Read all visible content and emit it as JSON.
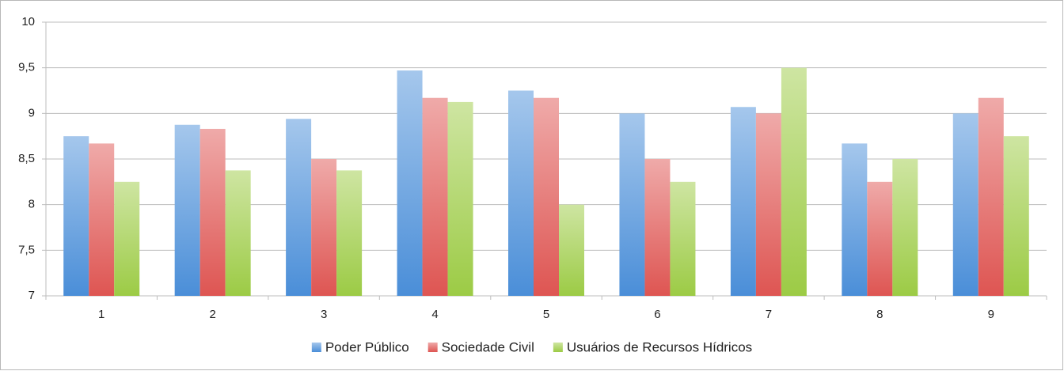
{
  "chart_data": {
    "type": "bar",
    "categories": [
      "1",
      "2",
      "3",
      "4",
      "5",
      "6",
      "7",
      "8",
      "9"
    ],
    "series": [
      {
        "name": "Poder Público",
        "color": "#4a8ed8",
        "values": [
          8.75,
          8.875,
          8.94,
          9.47,
          9.25,
          9.0,
          9.07,
          8.67,
          9.0
        ]
      },
      {
        "name": "Sociedade Civil",
        "color": "#de5552",
        "values": [
          8.67,
          8.83,
          8.5,
          9.17,
          9.17,
          8.5,
          9.0,
          8.25,
          9.17
        ]
      },
      {
        "name": "Usuários de Recursos Hídricos",
        "color": "#9ccb45",
        "values": [
          8.25,
          8.375,
          8.375,
          9.125,
          8.0,
          8.25,
          9.5,
          8.5,
          8.75
        ]
      }
    ],
    "ylim": [
      7,
      10
    ],
    "yticks": [
      7,
      {
        "value": 7.5,
        "label": "7,5"
      },
      8,
      {
        "value": 8.5,
        "label": "8,5"
      },
      9,
      {
        "value": 9.5,
        "label": "9,5"
      },
      10
    ],
    "grid": true,
    "legend": "bottom"
  }
}
